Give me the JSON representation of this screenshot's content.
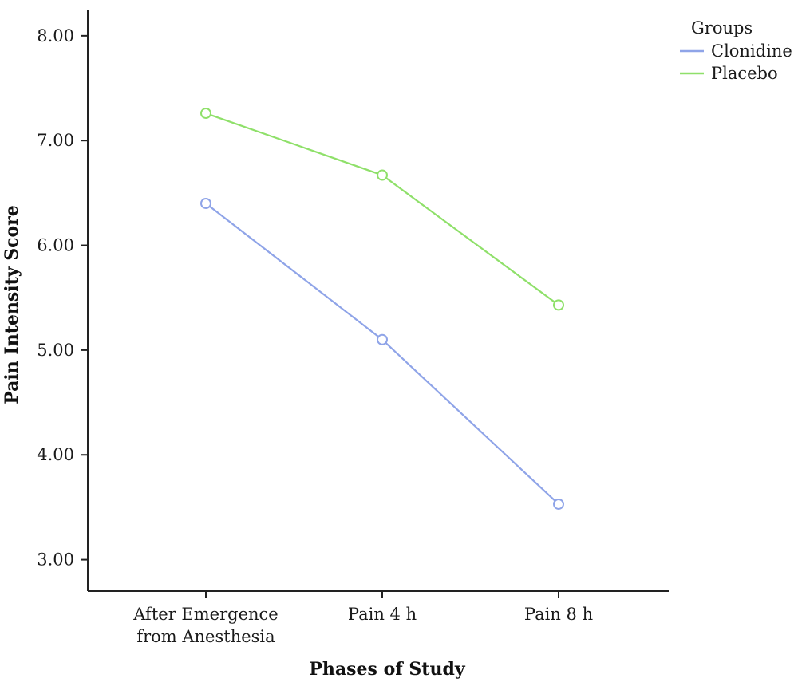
{
  "chart_data": {
    "type": "line",
    "title": "",
    "xlabel": "Phases of Study",
    "ylabel": "Pain Intensity Score",
    "categories": [
      [
        "After Emergence",
        "from Anesthesia"
      ],
      [
        "Pain 4 h"
      ],
      [
        "Pain 8 h"
      ]
    ],
    "yticks": [
      "3.00",
      "4.00",
      "5.00",
      "6.00",
      "7.00",
      "8.00"
    ],
    "ylim": [
      2.7,
      8.25
    ],
    "grid": false,
    "legend": {
      "title": "Groups",
      "position": "top-right"
    },
    "series": [
      {
        "name": "Clonidine",
        "color": "#8fa4e8",
        "values": [
          6.4,
          5.1,
          3.53
        ]
      },
      {
        "name": "Placebo",
        "color": "#8fe06a",
        "values": [
          7.26,
          6.67,
          5.43
        ]
      }
    ]
  }
}
